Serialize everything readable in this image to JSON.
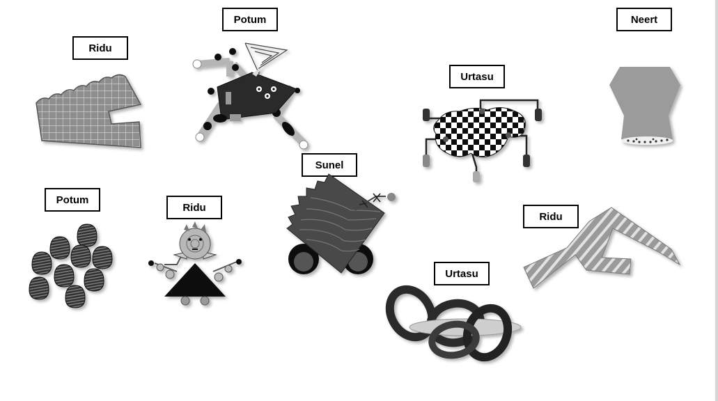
{
  "items": [
    {
      "label": "Ridu"
    },
    {
      "label": "Potum"
    },
    {
      "label": "Neert"
    },
    {
      "label": "Urtasu"
    },
    {
      "label": "Sunel"
    },
    {
      "label": "Potum"
    },
    {
      "label": "Ridu"
    },
    {
      "label": "Ridu"
    },
    {
      "label": "Urtasu"
    }
  ]
}
